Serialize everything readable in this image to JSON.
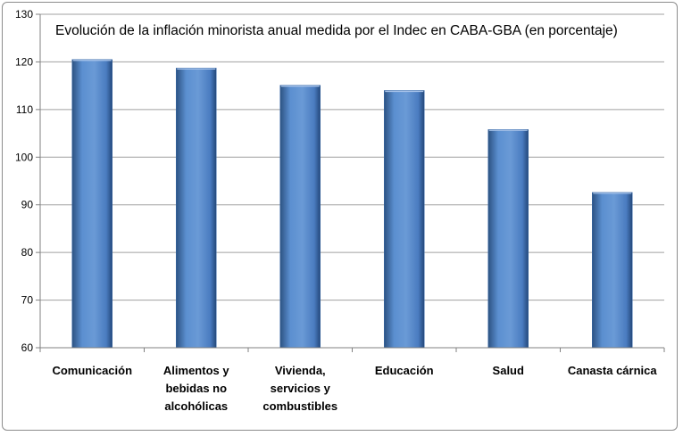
{
  "chart_data": {
    "type": "bar",
    "title": "Evolución de la inflación minorista anual medida por el Indec en CABA-GBA (en porcentaje)",
    "xlabel": "",
    "ylabel": "",
    "ylim": [
      60,
      130
    ],
    "yticks": [
      60,
      70,
      80,
      90,
      100,
      110,
      120,
      130
    ],
    "grid": true,
    "categories": [
      [
        "Comunicación"
      ],
      [
        "Alimentos y",
        "bebidas no",
        "alcohólicas"
      ],
      [
        "Vivienda,",
        "servicios y",
        "combustibles"
      ],
      [
        "Educación"
      ],
      [
        "Salud"
      ],
      [
        "Canasta cárnica"
      ]
    ],
    "values": [
      120.5,
      118.7,
      115.1,
      114.0,
      105.8,
      92.6
    ],
    "colors": {
      "bar": "#4f81bd",
      "bar_light": "#7fa6d8",
      "bar_dark": "#2c5282",
      "grid": "#a0a0a0",
      "axis": "#808080"
    }
  }
}
